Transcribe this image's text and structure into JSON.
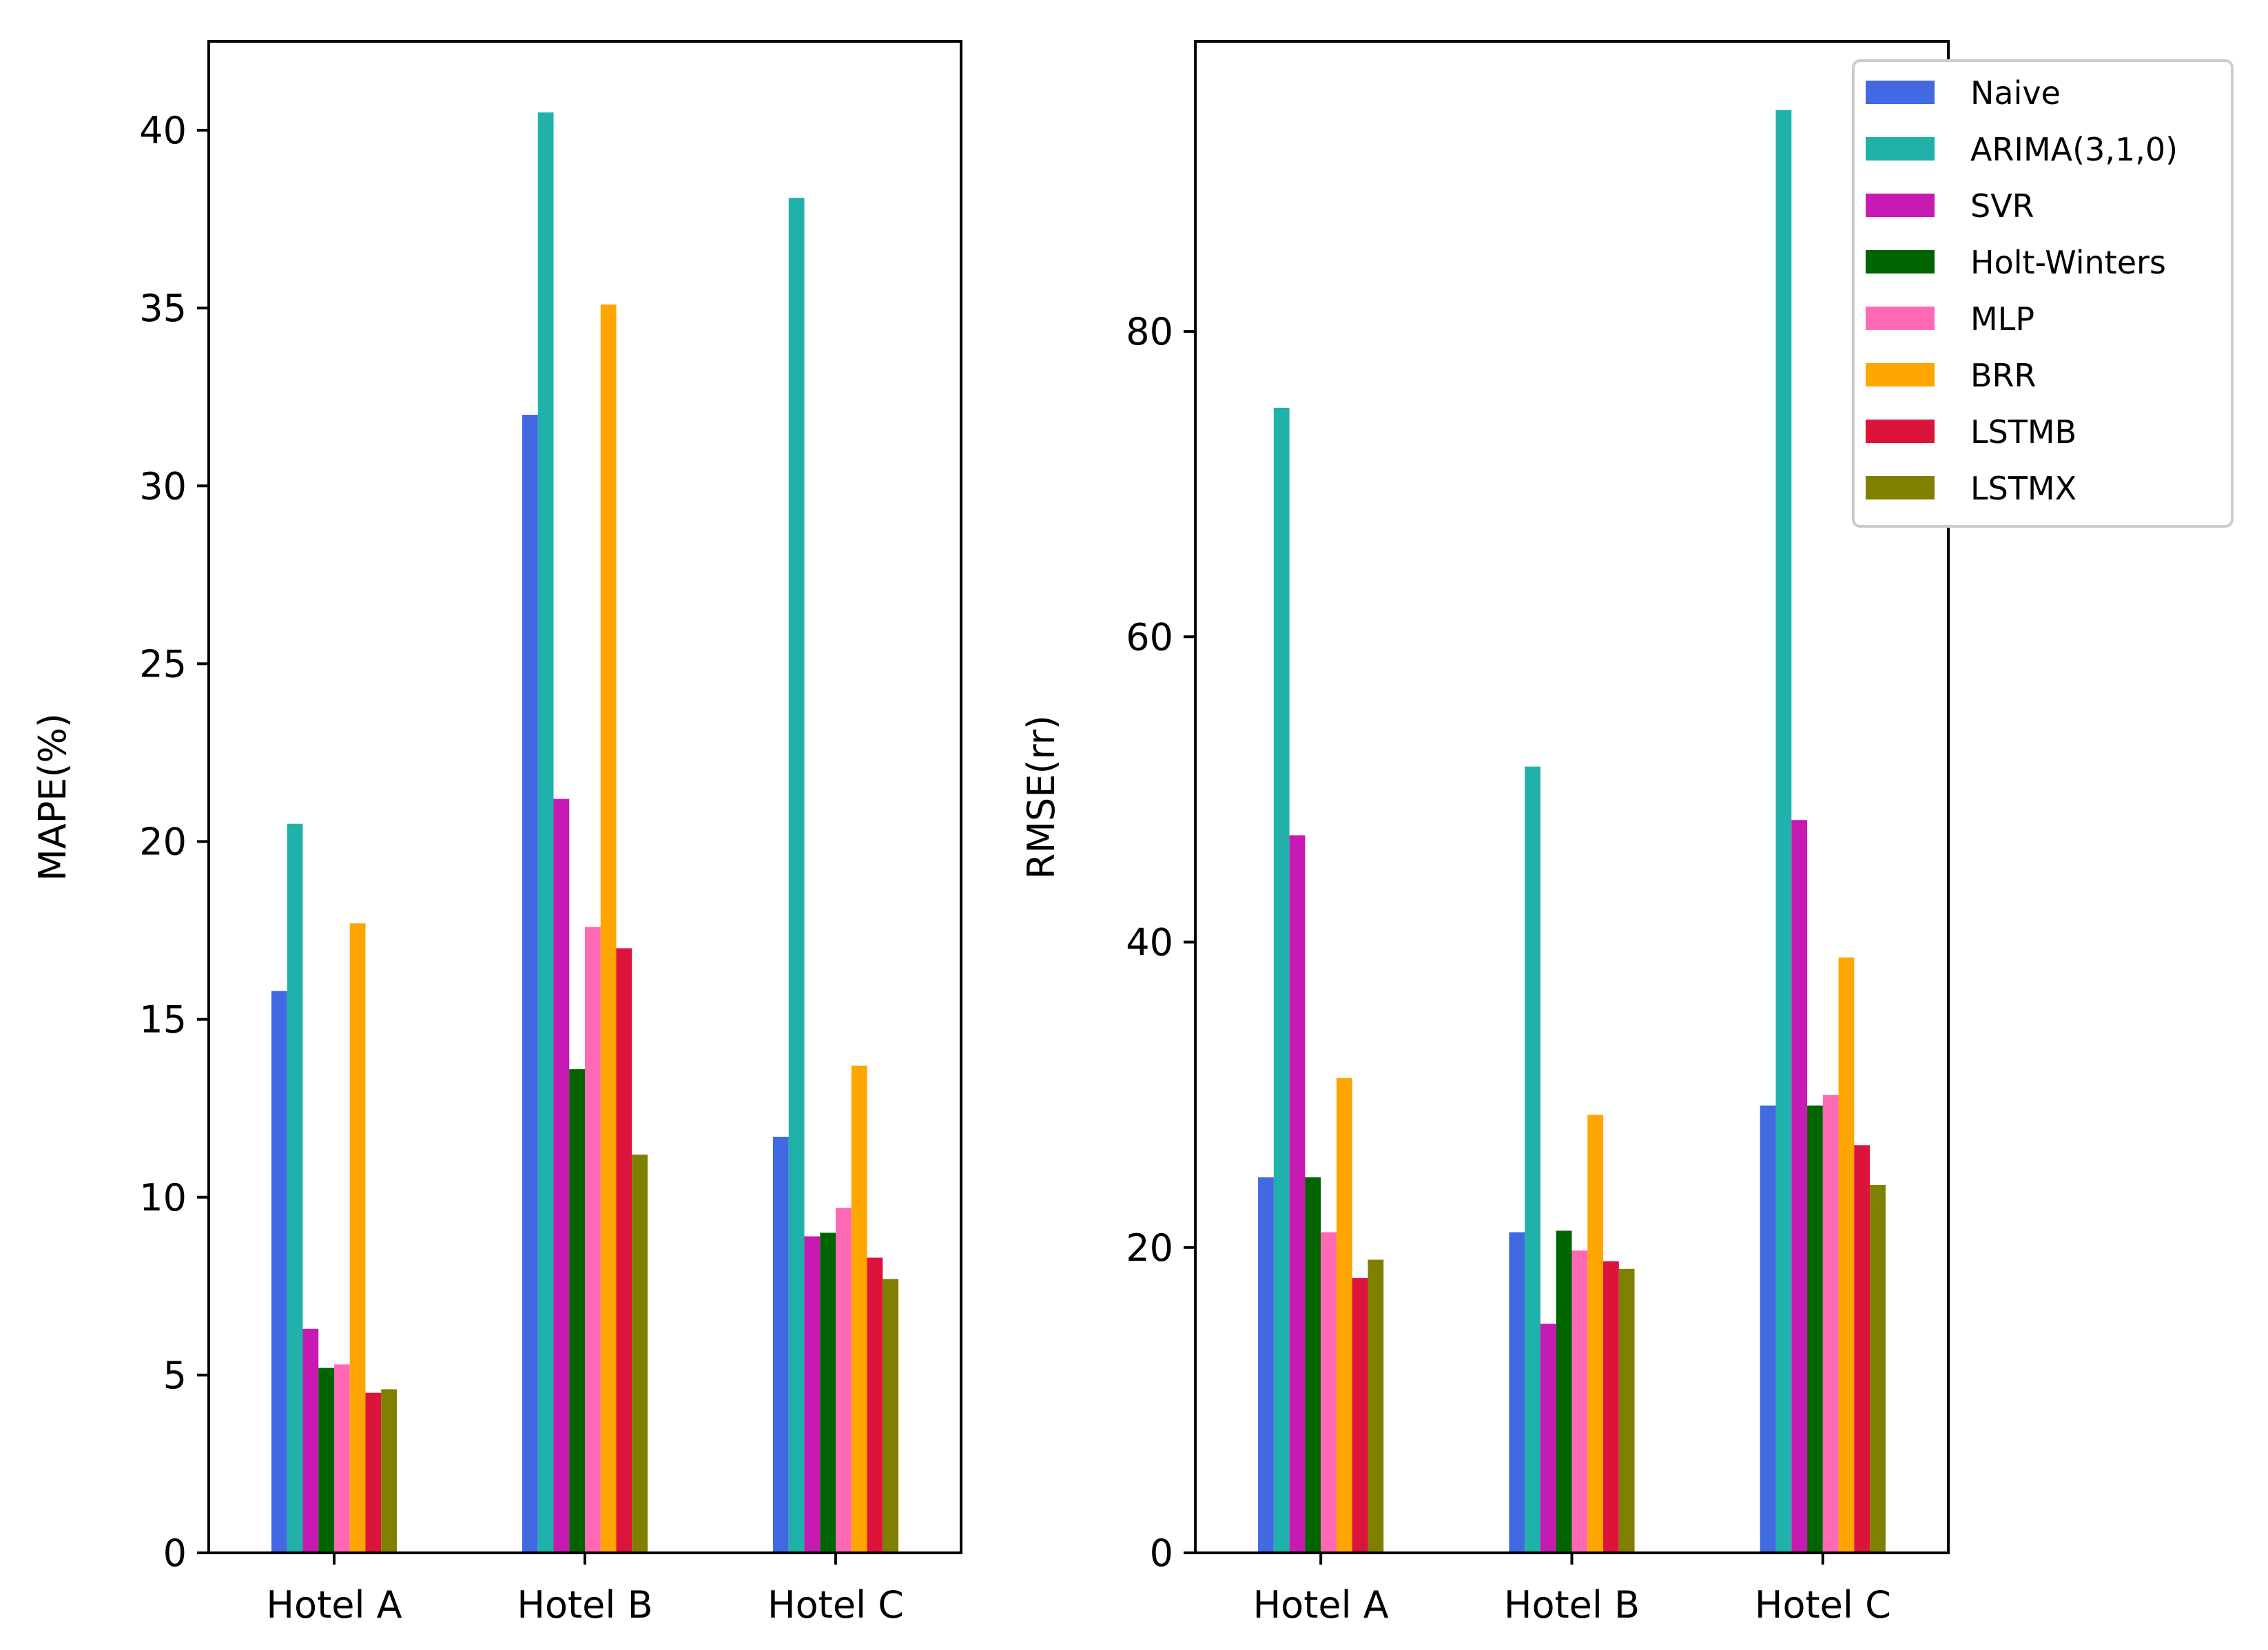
{
  "chart_data": [
    {
      "type": "bar",
      "title": "",
      "xlabel": "",
      "ylabel": "MAPE(%)",
      "ylim": [
        0,
        42.5
      ],
      "yticks": [
        0,
        5,
        10,
        15,
        20,
        25,
        30,
        35,
        40
      ],
      "categories": [
        "Hotel A",
        "Hotel B",
        "Hotel C"
      ],
      "series": [
        {
          "name": "Naive",
          "color": "#4169e1",
          "values": [
            15.8,
            32.0,
            11.7
          ]
        },
        {
          "name": "ARIMA(3,1,0)",
          "color": "#20b2aa",
          "values": [
            20.5,
            40.5,
            38.1
          ]
        },
        {
          "name": "SVR",
          "color": "#c71ab3",
          "values": [
            6.3,
            21.2,
            8.9
          ]
        },
        {
          "name": "Holt-Winters",
          "color": "#006400",
          "values": [
            5.2,
            13.6,
            9.0
          ]
        },
        {
          "name": "MLP",
          "color": "#ff69b4",
          "values": [
            5.3,
            17.6,
            9.7
          ]
        },
        {
          "name": "BRR",
          "color": "#ffa500",
          "values": [
            17.7,
            35.1,
            13.7
          ]
        },
        {
          "name": "LSTMB",
          "color": "#dc143c",
          "values": [
            4.5,
            17.0,
            8.3
          ]
        },
        {
          "name": "LSTMX",
          "color": "#808000",
          "values": [
            4.6,
            11.2,
            7.7
          ]
        }
      ]
    },
    {
      "type": "bar",
      "title": "",
      "xlabel": "",
      "ylabel": "RMSE(rr)",
      "ylim": [
        0,
        99
      ],
      "yticks": [
        0,
        20,
        40,
        60,
        80
      ],
      "legend_position": "upper-right-outside",
      "categories": [
        "Hotel A",
        "Hotel B",
        "Hotel C"
      ],
      "series": [
        {
          "name": "Naive",
          "color": "#4169e1",
          "values": [
            24.6,
            21.0,
            29.3
          ]
        },
        {
          "name": "ARIMA(3,1,0)",
          "color": "#20b2aa",
          "values": [
            75.0,
            51.5,
            94.5
          ]
        },
        {
          "name": "SVR",
          "color": "#c71ab3",
          "values": [
            47.0,
            15.0,
            48.0
          ]
        },
        {
          "name": "Holt-Winters",
          "color": "#006400",
          "values": [
            24.6,
            21.1,
            29.3
          ]
        },
        {
          "name": "MLP",
          "color": "#ff69b4",
          "values": [
            21.0,
            19.8,
            30.0
          ]
        },
        {
          "name": "BRR",
          "color": "#ffa500",
          "values": [
            31.1,
            28.7,
            39.0
          ]
        },
        {
          "name": "LSTMB",
          "color": "#dc143c",
          "values": [
            18.0,
            19.1,
            26.7
          ]
        },
        {
          "name": "LSTMX",
          "color": "#808000",
          "values": [
            19.2,
            18.6,
            24.1
          ]
        }
      ]
    }
  ]
}
